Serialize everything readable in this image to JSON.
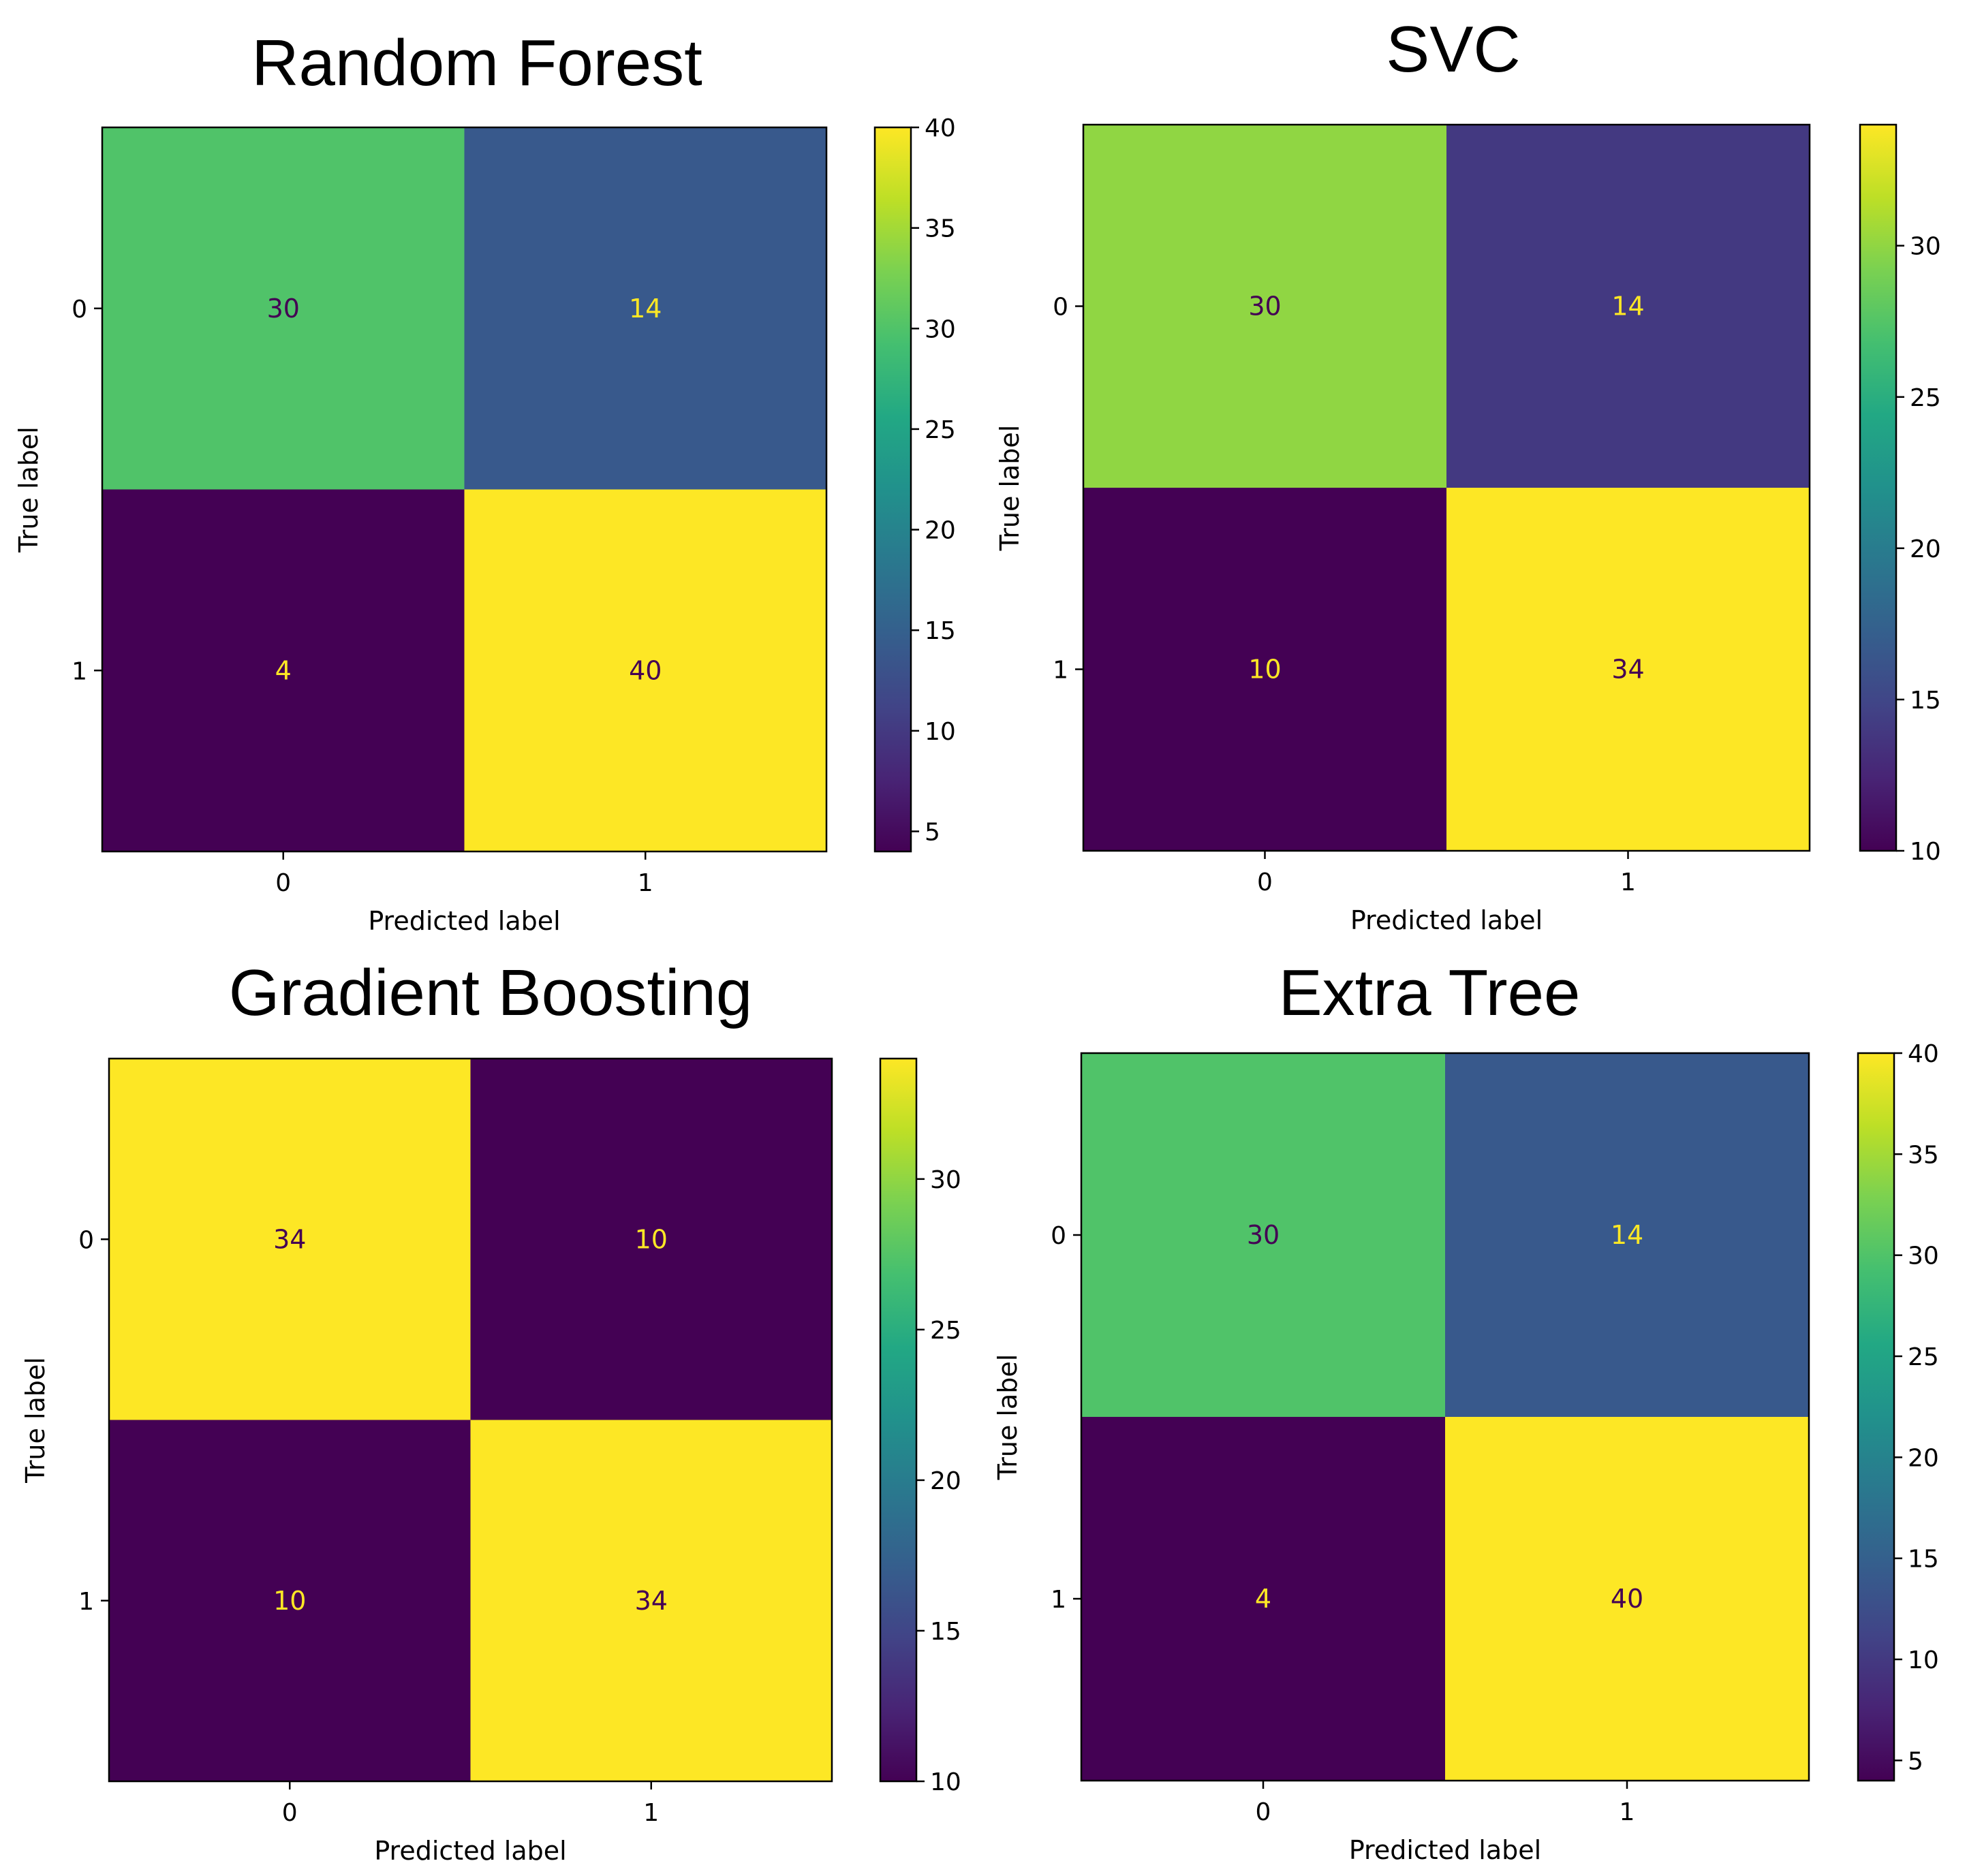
{
  "chart_data": [
    {
      "type": "heatmap",
      "title": "Random Forest",
      "xlabel": "Predicted label",
      "ylabel": "True label",
      "x_categories": [
        "0",
        "1"
      ],
      "y_categories": [
        "0",
        "1"
      ],
      "matrix": [
        [
          30,
          14
        ],
        [
          4,
          40
        ]
      ],
      "colormap": "viridis",
      "colorbar": {
        "range": [
          4,
          40
        ],
        "ticks": [
          "5",
          "10",
          "15",
          "20",
          "25",
          "30",
          "35",
          "40"
        ]
      }
    },
    {
      "type": "heatmap",
      "title": "SVC",
      "xlabel": "Predicted label",
      "ylabel": "True label",
      "x_categories": [
        "0",
        "1"
      ],
      "y_categories": [
        "0",
        "1"
      ],
      "matrix": [
        [
          30,
          14
        ],
        [
          10,
          34
        ]
      ],
      "colormap": "viridis",
      "colorbar": {
        "range": [
          10,
          34
        ],
        "ticks": [
          "10",
          "15",
          "20",
          "25",
          "30"
        ]
      }
    },
    {
      "type": "heatmap",
      "title": "Gradient Boosting",
      "xlabel": "Predicted label",
      "ylabel": "True label",
      "x_categories": [
        "0",
        "1"
      ],
      "y_categories": [
        "0",
        "1"
      ],
      "matrix": [
        [
          34,
          10
        ],
        [
          10,
          34
        ]
      ],
      "colormap": "viridis",
      "colorbar": {
        "range": [
          10,
          34
        ],
        "ticks": [
          "10",
          "15",
          "20",
          "25",
          "30"
        ]
      }
    },
    {
      "type": "heatmap",
      "title": "Extra Tree",
      "xlabel": "Predicted label",
      "ylabel": "True label",
      "x_categories": [
        "0",
        "1"
      ],
      "y_categories": [
        "0",
        "1"
      ],
      "matrix": [
        [
          30,
          14
        ],
        [
          4,
          40
        ]
      ],
      "colormap": "viridis",
      "colorbar": {
        "range": [
          4,
          40
        ],
        "ticks": [
          "5",
          "10",
          "15",
          "20",
          "25",
          "30",
          "35",
          "40"
        ]
      }
    }
  ],
  "colors": {
    "text_on_dark": "#fde725",
    "text_on_light": "#440154",
    "axis": "#000000"
  }
}
